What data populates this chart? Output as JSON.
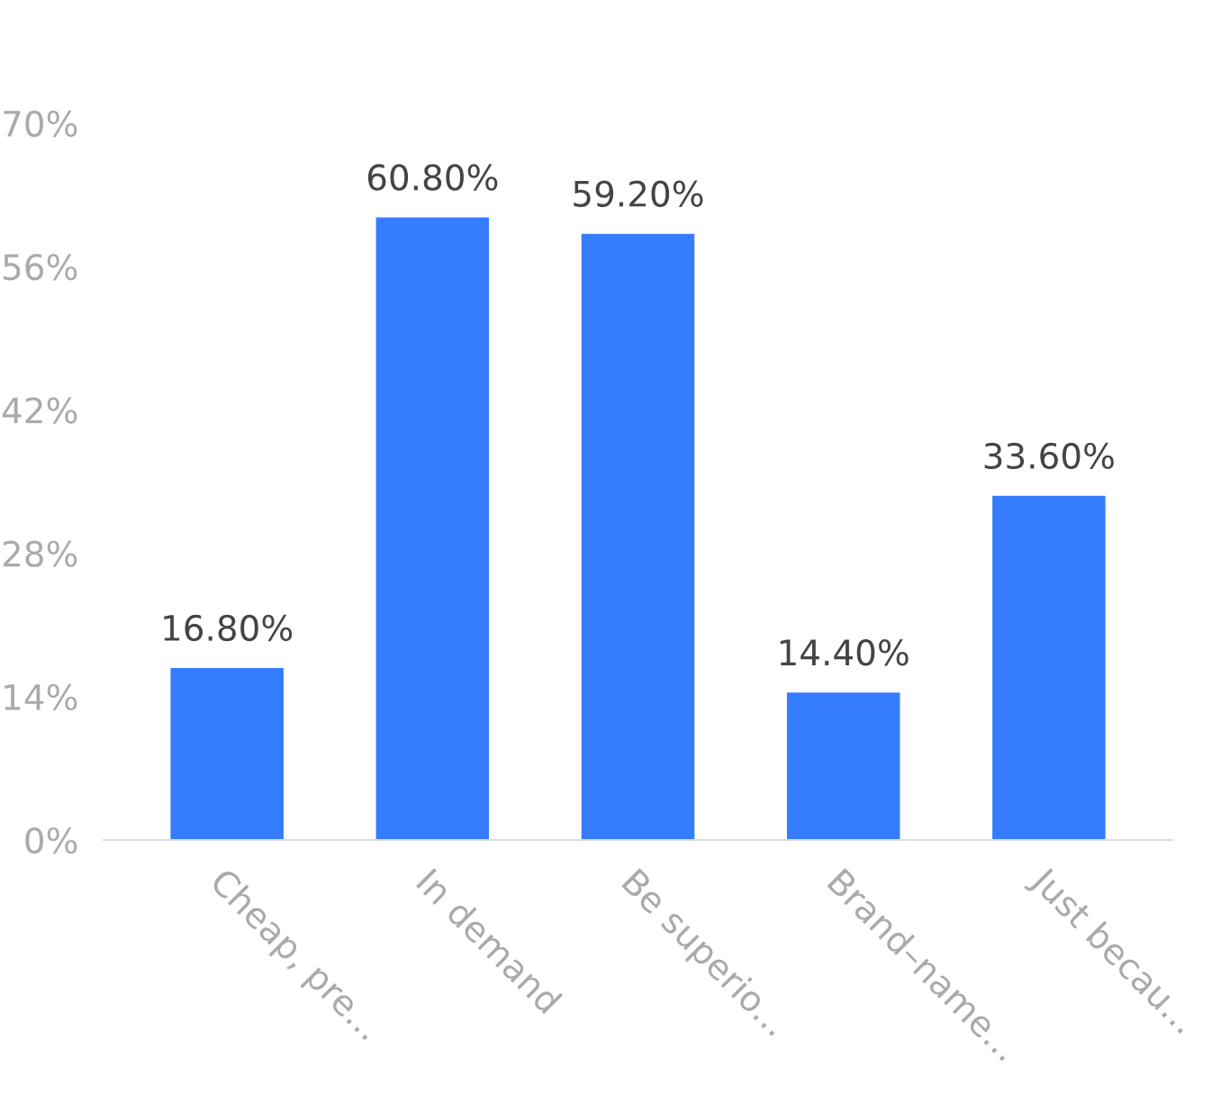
{
  "chart_data": {
    "type": "bar",
    "categories": [
      "Cheap, pre...",
      "In demand",
      "Be superio...",
      "Brand–name...",
      "Just becau..."
    ],
    "values": [
      16.8,
      60.8,
      59.2,
      14.4,
      33.6
    ],
    "value_labels": [
      "16.80%",
      "60.80%",
      "59.20%",
      "14.40%",
      "33.60%"
    ],
    "color": "#367cff",
    "ylim": [
      0,
      70
    ],
    "yticks": [
      {
        "value": 0,
        "label": "0%"
      },
      {
        "value": 14,
        "label": "14%"
      },
      {
        "value": 28,
        "label": "28%"
      },
      {
        "value": 42,
        "label": "42%"
      },
      {
        "value": 56,
        "label": "56%"
      },
      {
        "value": 70,
        "label": "70%"
      }
    ],
    "grid": false
  }
}
